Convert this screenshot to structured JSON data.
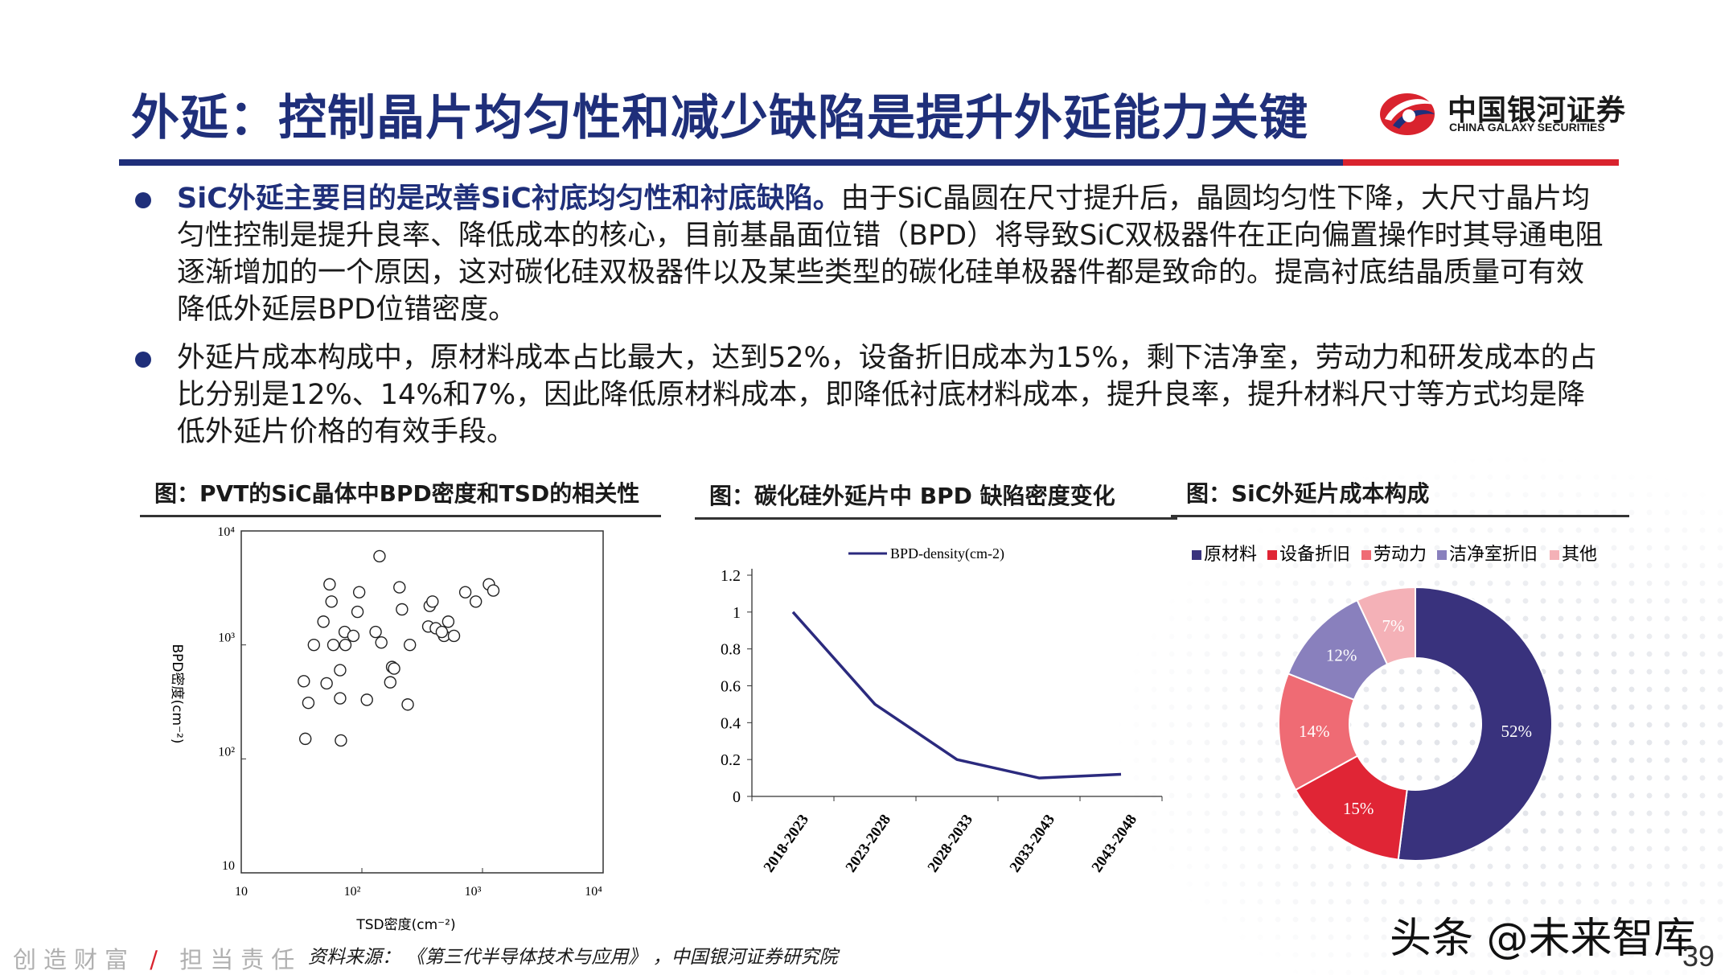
{
  "header": {
    "title": "外延：控制晶片均匀性和减少缺陷是提升外延能力关键",
    "logo_cn": "中国银河证券",
    "logo_en": "CHINA GALAXY SECURITIES",
    "colors": {
      "brand_blue": "#1f2f7a",
      "brand_red": "#d9232e"
    }
  },
  "bullets": [
    {
      "lead": "SiC外延主要目的是改善SiC衬底均匀性和衬底缺陷。",
      "text": "由于SiC晶圆在尺寸提升后，晶圆均匀性下降，大尺寸晶片均匀性控制是提升良率、降低成本的核心，目前基晶面位错（BPD）将导致SiC双极器件在正向偏置操作时其导通电阻逐渐增加的一个原因，这对碳化硅双极器件以及某些类型的碳化硅单极器件都是致命的。提高衬底结晶质量可有效降低外延层BPD位错密度。"
    },
    {
      "lead": "",
      "text": "外延片成本构成中，原材料成本占比最大，达到52%，设备折旧成本为15%，剩下洁净室，劳动力和研发成本的占比分别是12%、14%和7%，因此降低原材料成本，即降低衬底材料成本，提升良率，提升材料尺寸等方式均是降低外延片价格的有效手段。"
    }
  ],
  "figures": {
    "scatter_title": "图：PVT的SiC晶体中BPD密度和TSD的相关性",
    "line_title": "图：碳化硅外延片中 BPD 缺陷密度变化",
    "pie_title": "图：SiC外延片成本构成"
  },
  "chart_data": [
    {
      "type": "scatter",
      "title": "图：PVT的SiC晶体中BPD密度和TSD的相关性",
      "xlabel": "TSD密度(cm⁻²)",
      "ylabel": "BPD密度(cm⁻²)",
      "x_scale": "log",
      "y_scale": "log",
      "xlim": [
        10,
        10000
      ],
      "ylim": [
        10,
        10000
      ],
      "x_ticks": [
        "10",
        "10²",
        "10³",
        "10⁴"
      ],
      "y_ticks": [
        "10",
        "10²",
        "10³",
        "10⁴"
      ],
      "points": [
        [
          54,
          3400
        ],
        [
          56,
          2400
        ],
        [
          140,
          6000
        ],
        [
          95,
          2900
        ],
        [
          92,
          1950
        ],
        [
          205,
          3200
        ],
        [
          215,
          2050
        ],
        [
          72,
          1300
        ],
        [
          85,
          1200
        ],
        [
          130,
          1300
        ],
        [
          145,
          1050
        ],
        [
          48,
          1600
        ],
        [
          58,
          1000
        ],
        [
          73,
          1000
        ],
        [
          66,
          600
        ],
        [
          40,
          1000
        ],
        [
          33,
          480
        ],
        [
          36,
          310
        ],
        [
          51,
          460
        ],
        [
          66,
          340
        ],
        [
          110,
          330
        ],
        [
          172,
          470
        ],
        [
          178,
          640
        ],
        [
          185,
          620
        ],
        [
          250,
          1000
        ],
        [
          365,
          2200
        ],
        [
          385,
          2400
        ],
        [
          355,
          1450
        ],
        [
          410,
          1400
        ],
        [
          480,
          1200
        ],
        [
          460,
          1300
        ],
        [
          580,
          1200
        ],
        [
          520,
          1600
        ],
        [
          720,
          2900
        ],
        [
          880,
          2400
        ],
        [
          1130,
          3400
        ],
        [
          1230,
          3000
        ],
        [
          240,
          300
        ],
        [
          34,
          150
        ],
        [
          67,
          145
        ]
      ]
    },
    {
      "type": "line",
      "title": "图：碳化硅外延片中 BPD 缺陷密度变化",
      "legend": "BPD-density(cm-2)",
      "categories": [
        "2018-2023",
        "2023-2028",
        "2028-2033",
        "2033-2043",
        "2043-2048"
      ],
      "series": [
        {
          "name": "BPD-density(cm-2)",
          "values": [
            1.0,
            0.5,
            0.2,
            0.1,
            0.12
          ],
          "color": "#2b2a7e"
        }
      ],
      "ylim": [
        0,
        1.2
      ],
      "y_ticks": [
        "0",
        "0.2",
        "0.4",
        "0.6",
        "0.8",
        "1",
        "1.2"
      ]
    },
    {
      "type": "pie",
      "style": "donut",
      "title": "图：SiC外延片成本构成",
      "legend_placement": "top",
      "slices": [
        {
          "label": "原材料",
          "value": 52,
          "display": "52%",
          "color": "#39327d"
        },
        {
          "label": "设备折旧",
          "value": 15,
          "display": "15%",
          "color": "#e02535"
        },
        {
          "label": "劳动力",
          "value": 14,
          "display": "14%",
          "color": "#ef6b74"
        },
        {
          "label": "洁净室折旧",
          "value": 12,
          "display": "12%",
          "color": "#8980bd"
        },
        {
          "label": "其他",
          "value": 7,
          "display": "7%",
          "color": "#f4b1b7"
        }
      ]
    }
  ],
  "footer": {
    "slogan_a": "创造财富",
    "slogan_sep": "/",
    "slogan_b": "担当责任",
    "source": "资料来源：  《第三代半导体技术与应用》  ，中国银河证券研究院",
    "watermark": "头条 @未来智库",
    "page": "39"
  }
}
